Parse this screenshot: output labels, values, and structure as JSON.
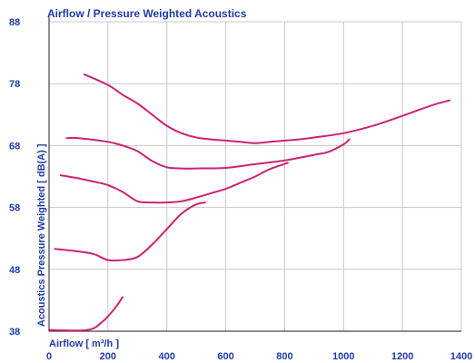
{
  "chart_data": {
    "type": "line",
    "title": "Airflow / Pressure Weighted Acoustics",
    "xlabel": "Airflow [ m³/h ]",
    "ylabel": "Acoustics Pressure Weighted [ dB(A) ]",
    "xlim": [
      0,
      1400
    ],
    "ylim": [
      38,
      88
    ],
    "xticks": [
      "0",
      "200",
      "400",
      "600",
      "800",
      "1000",
      "1200",
      "1400"
    ],
    "yticks": [
      "38",
      "48",
      "58",
      "68",
      "78",
      "88"
    ],
    "grid": true,
    "colors": {
      "line": "#cc2277",
      "text": "#1f3aa8",
      "grid": "#c8c8c8",
      "axis": "#444444"
    },
    "series": [
      {
        "x": [
          0,
          130,
          180,
          220,
          250
        ],
        "y": [
          38.2,
          38.2,
          39.5,
          41.5,
          43.5
        ]
      },
      {
        "x": [
          20,
          80,
          150,
          200,
          250,
          300,
          350,
          400,
          450,
          500,
          530
        ],
        "y": [
          51.3,
          51.0,
          50.5,
          49.5,
          49.5,
          50.0,
          52.0,
          54.5,
          57.0,
          58.5,
          58.8
        ]
      },
      {
        "x": [
          40,
          100,
          150,
          200,
          250,
          300,
          350,
          400,
          450,
          500,
          550,
          600,
          650,
          700,
          750,
          810
        ],
        "y": [
          63.2,
          62.7,
          62.2,
          61.6,
          60.5,
          59.0,
          58.8,
          58.8,
          59.0,
          59.6,
          60.3,
          61.0,
          62.0,
          63.0,
          64.2,
          65.2
        ]
      },
      {
        "x": [
          60,
          100,
          200,
          250,
          300,
          350,
          400,
          450,
          500,
          600,
          700,
          800,
          900,
          950,
          1000,
          1020
        ],
        "y": [
          69.2,
          69.2,
          68.6,
          68.0,
          67.1,
          65.5,
          64.5,
          64.3,
          64.3,
          64.4,
          65.0,
          65.6,
          66.5,
          67.0,
          68.2,
          69.0
        ]
      },
      {
        "x": [
          120,
          200,
          250,
          300,
          350,
          400,
          450,
          500,
          550,
          600,
          650,
          700,
          750,
          800,
          850,
          900,
          1000,
          1100,
          1200,
          1300,
          1360
        ],
        "y": [
          79.5,
          77.8,
          76.2,
          74.8,
          73.0,
          71.2,
          70.0,
          69.3,
          69.0,
          68.8,
          68.6,
          68.4,
          68.6,
          68.8,
          69.0,
          69.3,
          70.0,
          71.2,
          72.8,
          74.5,
          75.3
        ]
      }
    ]
  }
}
